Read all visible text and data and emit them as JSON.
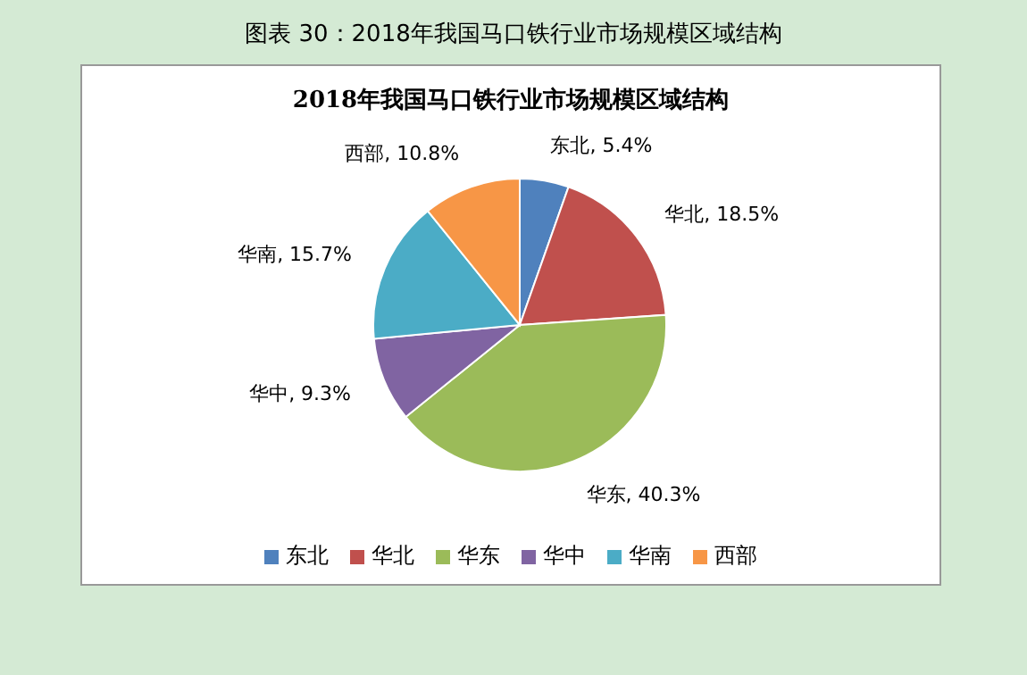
{
  "chart_data": {
    "type": "pie",
    "title": "2018年我国马口铁行业市场规模区域结构",
    "subtitle": "图表 30：2018年我国马口铁行业市场规模区域结构",
    "categories": [
      "东北",
      "华北",
      "华东",
      "华中",
      "华南",
      "西部"
    ],
    "values": [
      5.4,
      18.5,
      40.3,
      9.3,
      15.7,
      10.8
    ],
    "value_labels": [
      "东北, 5.4%",
      "华北, 18.5%",
      "华东, 40.3%",
      "华中, 9.3%",
      "华南, 15.7%",
      "西部, 10.8%"
    ],
    "colors": [
      "#4f81bd",
      "#c0504d",
      "#9bbb59",
      "#8064a2",
      "#4bacc6",
      "#f79646"
    ],
    "legend": "bottom"
  }
}
